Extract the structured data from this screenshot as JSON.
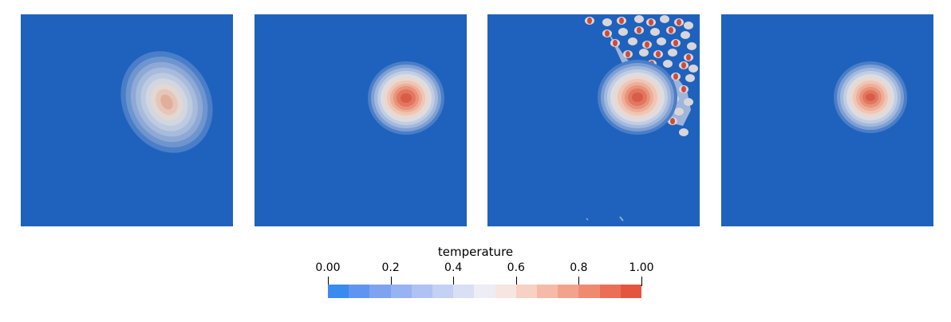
{
  "legend": {
    "title": "temperature",
    "ticks": [
      {
        "label": "0.00",
        "value": 0.0
      },
      {
        "label": "0.2",
        "value": 0.2
      },
      {
        "label": "0.4",
        "value": 0.4
      },
      {
        "label": "0.6",
        "value": 0.6
      },
      {
        "label": "0.8",
        "value": 0.8
      },
      {
        "label": "1.00",
        "value": 1.0
      }
    ],
    "range": [
      0,
      1
    ],
    "colors": [
      "#3b8af0",
      "#5f95f0",
      "#7ea4f0",
      "#97b3f2",
      "#aec2f3",
      "#c4d0f4",
      "#d9dff5",
      "#ecedf5",
      "#f7e5e0",
      "#f6d1c4",
      "#f5bba8",
      "#f3a38c",
      "#ef8a71",
      "#ea6f57",
      "#e4553f"
    ]
  },
  "panels": [
    {
      "name": "panel-1"
    },
    {
      "name": "panel-2"
    },
    {
      "name": "panel-3"
    },
    {
      "name": "panel-4"
    }
  ]
}
